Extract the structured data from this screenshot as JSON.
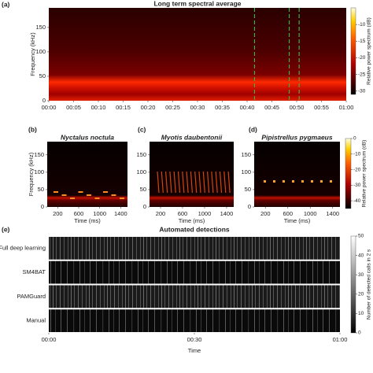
{
  "chart_data": [
    {
      "type": "spectrogram",
      "panel": "(a)",
      "title": "Long term spectral average",
      "y_label": "Frequency (kHz)",
      "xlim": [
        0,
        60
      ],
      "xticks": [
        {
          "value": 0,
          "label": "00:00"
        },
        {
          "value": 5,
          "label": "00:05"
        },
        {
          "value": 10,
          "label": "00:10"
        },
        {
          "value": 15,
          "label": "00:15"
        },
        {
          "value": 20,
          "label": "00:20"
        },
        {
          "value": 25,
          "label": "00:25"
        },
        {
          "value": 30,
          "label": "00:30"
        },
        {
          "value": 35,
          "label": "00:35"
        },
        {
          "value": 40,
          "label": "00:40"
        },
        {
          "value": 45,
          "label": "00:45"
        },
        {
          "value": 50,
          "label": "00:50"
        },
        {
          "value": 55,
          "label": "00:55"
        },
        {
          "value": 60,
          "label": "01:00"
        }
      ],
      "ylim": [
        0,
        190
      ],
      "yticks": [
        0,
        50,
        100,
        150
      ],
      "markers": {
        "color": "#3cb043",
        "x": [
          41.5,
          48.5,
          50.5
        ]
      },
      "colorbar": {
        "label": "Relative power spectrum (dB)",
        "lim": [
          -31,
          -5
        ],
        "ticks": [
          -10,
          -15,
          -20,
          -25,
          -30
        ]
      }
    },
    {
      "type": "spectrogram",
      "panel": "(b)",
      "title": "Nyctalus noctula",
      "y_label": "Frequency (kHz)",
      "x_label": "Time (ms)",
      "xlim": [
        0,
        1530
      ],
      "xticks": [
        200,
        600,
        1000,
        1400
      ],
      "ylim": [
        0,
        188
      ],
      "yticks": [
        0,
        50,
        100,
        150
      ]
    },
    {
      "type": "spectrogram",
      "panel": "(c)",
      "title": "Myotis daubentonii",
      "x_label": "Time (ms)",
      "xlim": [
        0,
        1530
      ],
      "xticks": [
        200,
        600,
        1000,
        1400
      ],
      "ylim": [
        0,
        188
      ],
      "yticks": [
        0,
        50,
        100,
        150
      ]
    },
    {
      "type": "spectrogram",
      "panel": "(d)",
      "title": "Pipistrellus pygmaeus",
      "x_label": "Time (ms)",
      "xlim": [
        0,
        1530
      ],
      "xticks": [
        200,
        600,
        1000,
        1400
      ],
      "ylim": [
        0,
        188
      ],
      "yticks": [
        0,
        50,
        100,
        150
      ],
      "colorbar": {
        "label": "Relative power spectrum (dB)",
        "lim": [
          -45,
          0
        ],
        "ticks": [
          0,
          -10,
          -20,
          -30,
          -40
        ]
      }
    },
    {
      "type": "raster",
      "panel": "(e)",
      "title": "Automated detections",
      "x_label": "Time",
      "categories": [
        "Full deep learning",
        "SM4BAT",
        "PAMGuard",
        "Manual"
      ],
      "xlim": [
        0,
        60
      ],
      "xticks": [
        {
          "value": 0,
          "label": "00:00"
        },
        {
          "value": 30,
          "label": "00:30"
        },
        {
          "value": 60,
          "label": "01:00"
        }
      ],
      "colorbar": {
        "label": "Number of detected calls in 2 s",
        "lim": [
          0,
          50
        ],
        "ticks": [
          0,
          10,
          20,
          30,
          40,
          50
        ]
      }
    }
  ]
}
